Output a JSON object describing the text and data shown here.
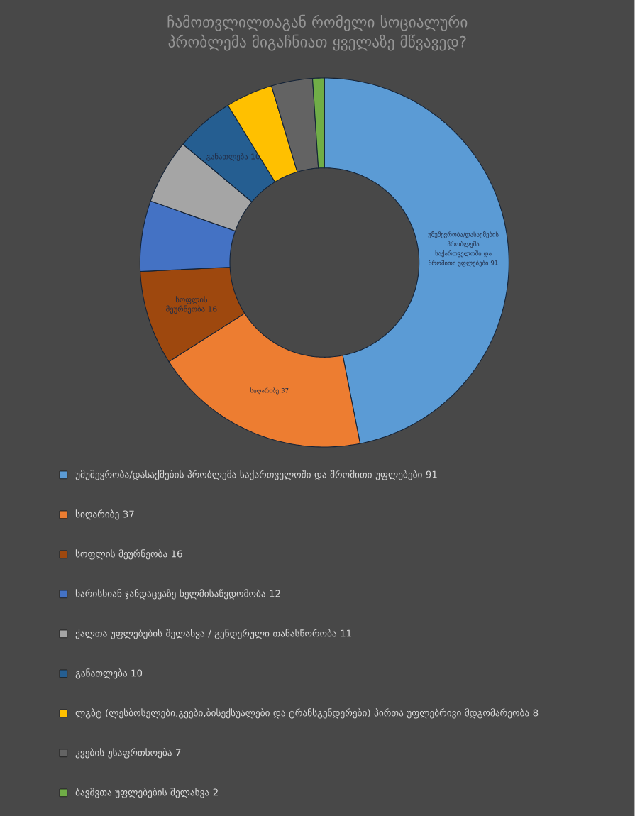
{
  "chart_data": {
    "type": "donut",
    "title": "ჩამოთვლილთაგან რომელი სოციალური პრობლემა მიგაჩნიათ ყველაზე მწვავედ?",
    "categories": [
      "უმუშევრობა/დასაქმების პრობლემა საქართველოში და შრომითი უფლებები 91",
      "სიღარიბე 37",
      "სოფლის მეურნეობა 16",
      "ხარისხიან ჯანდაცვაზე ხელმისაწვდომობა 12",
      "ქალთა უფლებების შელახვა / გენდერული თანასწორობა 11",
      "განათლება 10",
      "ლგბტ (ლესბოსელები,გეები,ბისექსუალები და ტრანსგენდერები) პირთა უფლებრივი მდგომარეობა 8",
      "კვების უსაფრთხოება 7",
      "ბავშვთა უფლებების შელახვა 2"
    ],
    "values": [
      91,
      37,
      16,
      12,
      11,
      10,
      8,
      7,
      2
    ],
    "colors": [
      "#5b9bd5",
      "#ed7d31",
      "#9e480e",
      "#4472c4",
      "#a5a5a5",
      "#255e91",
      "#ffc000",
      "#636363",
      "#70ad47"
    ],
    "value_labels": [
      "უმუშევრობა/დასაქმების პრობლემა საქართველოში და შრომითი უფლებები 91",
      "სიღარიბე 37",
      "სოფლის მეურნეობა 16",
      null,
      null,
      "განათლება 10",
      null,
      null,
      null
    ],
    "legend": "bottom"
  }
}
